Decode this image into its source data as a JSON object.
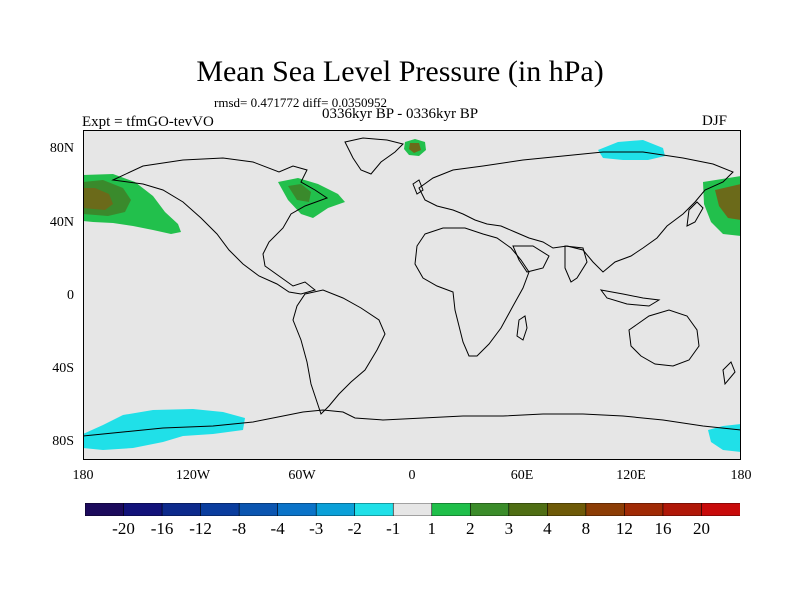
{
  "title": "Mean Sea Level Pressure (in hPa)",
  "stats": "rmsd= 0.471772 diff= 0.0350952",
  "experiment": "Expt = tfmGO-tevVO",
  "period": "0336kyr BP - 0336kyr BP",
  "season": "DJF",
  "lat_labels": [
    "80N",
    "40N",
    "0",
    "40S",
    "80S"
  ],
  "lon_labels": [
    "180",
    "120W",
    "60W",
    "0",
    "60E",
    "120E",
    "180"
  ],
  "colorbar": {
    "labels": [
      "-20",
      "-16",
      "-12",
      "-8",
      "-4",
      "-3",
      "-2",
      "-1",
      "1",
      "2",
      "3",
      "4",
      "8",
      "12",
      "16",
      "20"
    ],
    "colors": [
      "#1c0a5c",
      "#12127a",
      "#0d2a8c",
      "#0a3d9e",
      "#0b55b0",
      "#0a73c8",
      "#0aa0d8",
      "#20e0e8",
      "#e6e6e6",
      "#1fbf4a",
      "#3b8c2a",
      "#4f6e14",
      "#6e5a08",
      "#8c3d05",
      "#a02a05",
      "#b01808",
      "#c80a0a"
    ]
  },
  "map_colors": {
    "background": "#e6e6e6",
    "coast": "#000000",
    "anomaly_pos_1": "#22c04c",
    "anomaly_pos_2": "#3a8a2c",
    "anomaly_pos_3": "#6b6a1a",
    "anomaly_neg_1": "#20e0e8"
  }
}
